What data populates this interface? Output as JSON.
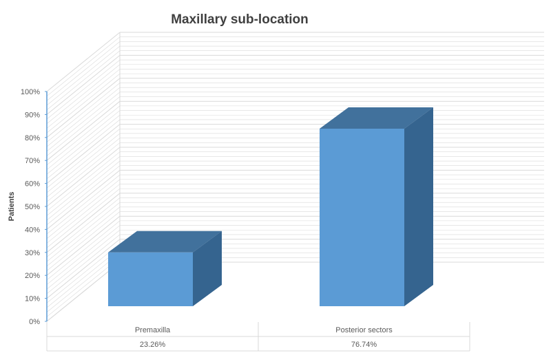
{
  "chart_data": {
    "type": "bar",
    "title": "Maxillary sub-location",
    "xlabel": "",
    "ylabel": "Patients",
    "categories": [
      "Premaxilla",
      "Posterior sectors"
    ],
    "values": [
      23.26,
      76.74
    ],
    "value_labels": [
      "23.26%",
      "76.74%"
    ],
    "yticks": [
      "0%",
      "10%",
      "20%",
      "30%",
      "40%",
      "50%",
      "60%",
      "70%",
      "80%",
      "90%",
      "100%"
    ],
    "ylim": [
      0,
      100
    ],
    "grid": true,
    "legend": "none",
    "data_table": true,
    "three_d": true,
    "colors": {
      "bar_front": "#5b9bd5",
      "bar_top": "#41719c",
      "bar_side": "#35648f",
      "grid": "#d9d9d9",
      "axis": "#5b9bd5"
    }
  }
}
